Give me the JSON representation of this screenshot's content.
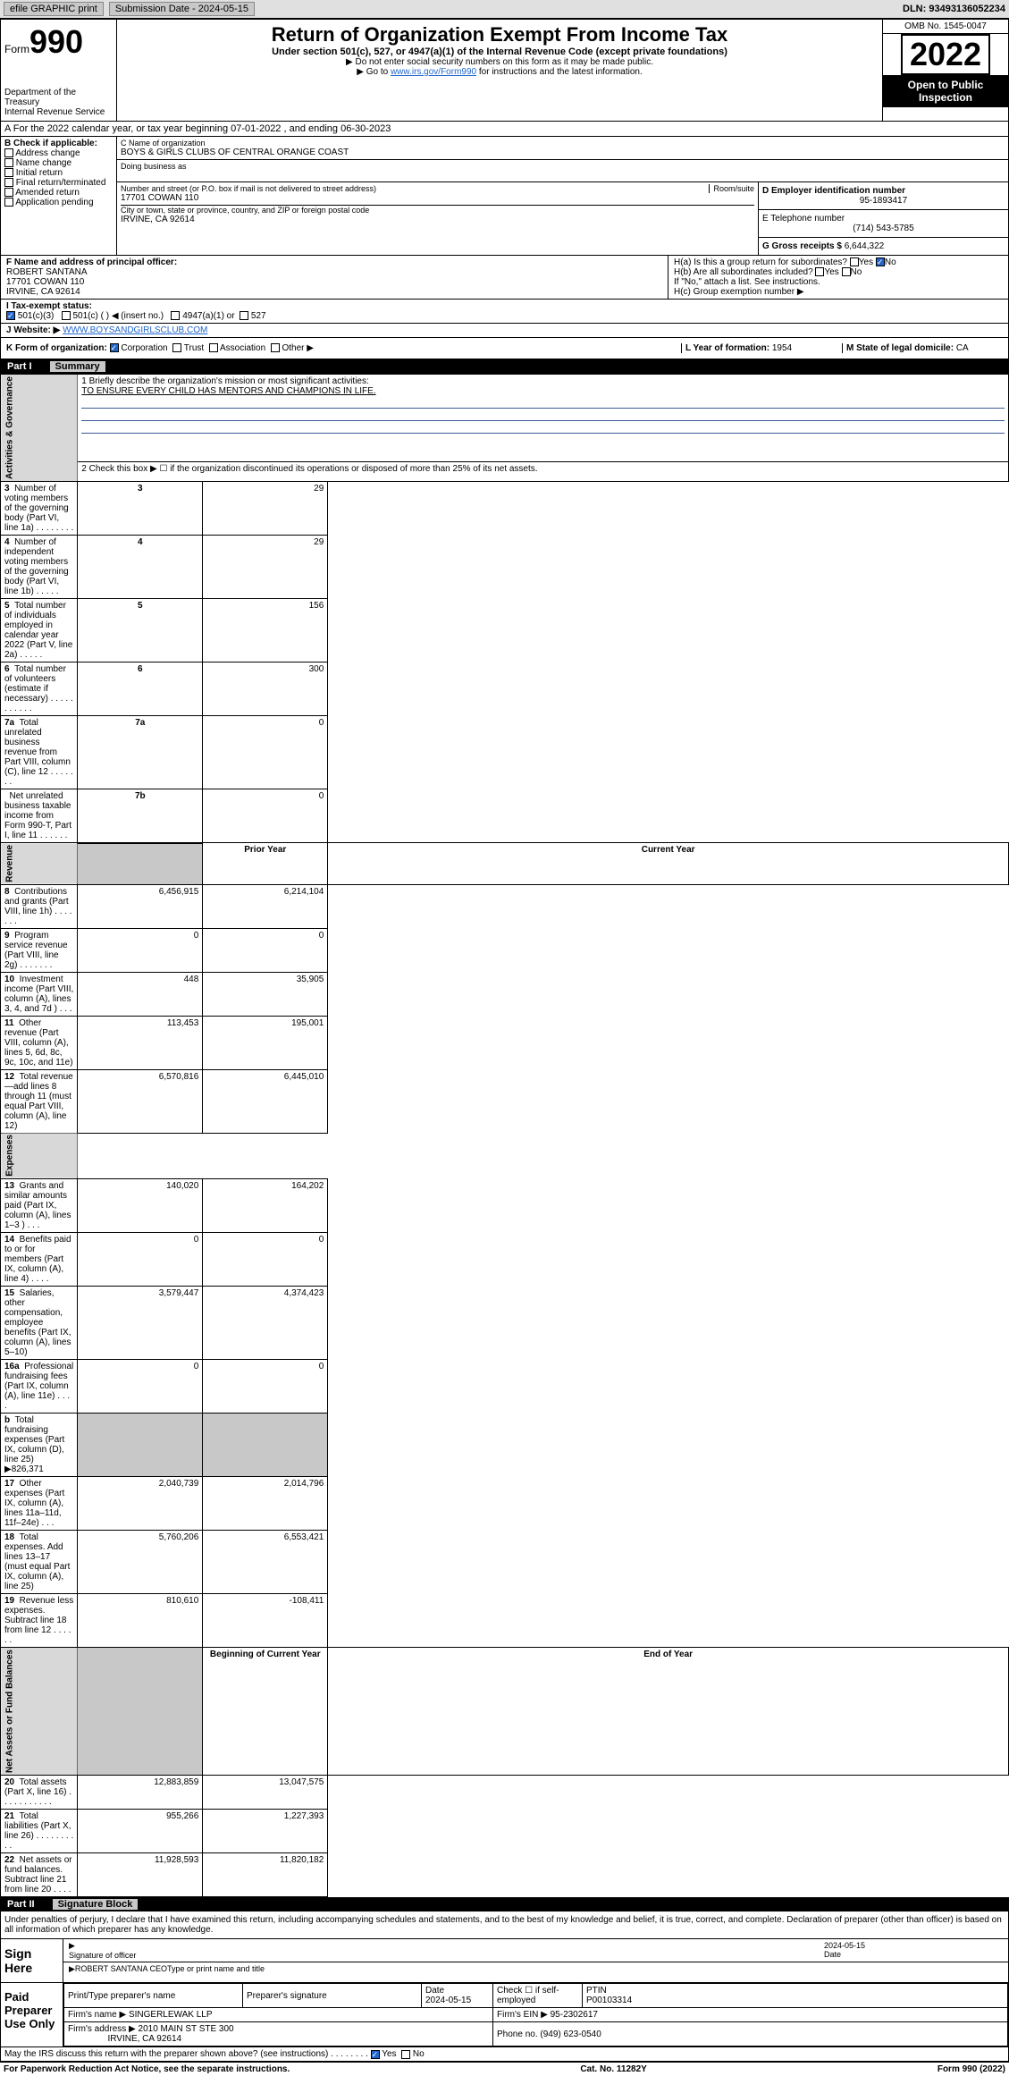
{
  "top_bar": {
    "efile": "efile GRAPHIC print",
    "submission": "Submission Date - 2024-05-15",
    "dln": "DLN: 93493136052234"
  },
  "header": {
    "form_word": "Form",
    "form_num": "990",
    "dept": "Department of the Treasury",
    "irs": "Internal Revenue Service",
    "title": "Return of Organization Exempt From Income Tax",
    "subtitle": "Under section 501(c), 527, or 4947(a)(1) of the Internal Revenue Code (except private foundations)",
    "instr1": "▶ Do not enter social security numbers on this form as it may be made public.",
    "instr2_pre": "▶ Go to ",
    "instr2_link": "www.irs.gov/Form990",
    "instr2_post": " for instructions and the latest information.",
    "omb": "OMB No. 1545-0047",
    "year": "2022",
    "inspect": "Open to Public Inspection"
  },
  "section_a": "A For the 2022 calendar year, or tax year beginning 07-01-2022   , and ending 06-30-2023",
  "section_b": {
    "label": "B Check if applicable:",
    "items": [
      "Address change",
      "Name change",
      "Initial return",
      "Final return/terminated",
      "Amended return",
      "Application pending"
    ]
  },
  "section_c": {
    "name_label": "C Name of organization",
    "name": "BOYS & GIRLS CLUBS OF CENTRAL ORANGE COAST",
    "dba_label": "Doing business as",
    "addr_label": "Number and street (or P.O. box if mail is not delivered to street address)",
    "room_label": "Room/suite",
    "addr": "17701 COWAN 110",
    "city_label": "City or town, state or province, country, and ZIP or foreign postal code",
    "city": "IRVINE, CA  92614"
  },
  "section_d": {
    "label": "D Employer identification number",
    "value": "95-1893417"
  },
  "section_e": {
    "label": "E Telephone number",
    "value": "(714) 543-5785"
  },
  "section_g": {
    "label": "G Gross receipts $",
    "value": "6,644,322"
  },
  "section_f": {
    "label": "F Name and address of principal officer:",
    "name": "ROBERT SANTANA",
    "addr": "17701 COWAN 110",
    "city": "IRVINE, CA  92614"
  },
  "section_h": {
    "a": "H(a)  Is this a group return for subordinates?",
    "a_yes": "Yes",
    "a_no": "No",
    "b": "H(b)  Are all subordinates included?",
    "b_note": "If \"No,\" attach a list. See instructions.",
    "c": "H(c)  Group exemption number ▶"
  },
  "section_i": {
    "label": "I   Tax-exempt status:",
    "opts": [
      "501(c)(3)",
      "501(c) (  ) ◀ (insert no.)",
      "4947(a)(1) or",
      "527"
    ]
  },
  "section_j": {
    "label": "J   Website: ▶",
    "value": "WWW.BOYSANDGIRLSCLUB.COM"
  },
  "section_k": {
    "label": "K Form of organization:",
    "opts": [
      "Corporation",
      "Trust",
      "Association",
      "Other ▶"
    ]
  },
  "section_l": {
    "label": "L Year of formation:",
    "value": "1954"
  },
  "section_m": {
    "label": "M State of legal domicile:",
    "value": "CA"
  },
  "part1": {
    "num": "Part I",
    "title": "Summary"
  },
  "summary": {
    "governance_label": "Activities & Governance",
    "revenue_label": "Revenue",
    "expenses_label": "Expenses",
    "netassets_label": "Net Assets or Fund Balances",
    "line1_label": "1  Briefly describe the organization's mission or most significant activities:",
    "line1_text": "TO ENSURE EVERY CHILD HAS MENTORS AND CHAMPIONS IN LIFE.",
    "line2": "2   Check this box ▶ ☐  if the organization discontinued its operations or disposed of more than 25% of its net assets.",
    "rows_gov": [
      {
        "n": "3",
        "d": "Number of voting members of the governing body (Part VI, line 1a)   .    .    .    .    .    .    .    .",
        "k": "3",
        "v": "29"
      },
      {
        "n": "4",
        "d": "Number of independent voting members of the governing body (Part VI, line 1b)  .    .    .    .    .",
        "k": "4",
        "v": "29"
      },
      {
        "n": "5",
        "d": "Total number of individuals employed in calendar year 2022 (Part V, line 2a)   .    .    .    .    .",
        "k": "5",
        "v": "156"
      },
      {
        "n": "6",
        "d": "Total number of volunteers (estimate if necessary)   .    .    .    .    .    .    .    .    .    .    .",
        "k": "6",
        "v": "300"
      },
      {
        "n": "7a",
        "d": "Total unrelated business revenue from Part VIII, column (C), line 12   .    .    .    .    .    .    .",
        "k": "7a",
        "v": "0"
      },
      {
        "n": "",
        "d": "Net unrelated business taxable income from Form 990-T, Part I, line 11   .    .    .    .    .    .",
        "k": "7b",
        "v": "0"
      }
    ],
    "hdr_prior": "Prior Year",
    "hdr_current": "Current Year",
    "rows_rev": [
      {
        "n": "8",
        "d": "Contributions and grants (Part VIII, line 1h)   .    .    .    .    .    .    .",
        "p": "6,456,915",
        "c": "6,214,104"
      },
      {
        "n": "9",
        "d": "Program service revenue (Part VIII, line 2g)   .    .    .    .    .    .    .",
        "p": "0",
        "c": "0"
      },
      {
        "n": "10",
        "d": "Investment income (Part VIII, column (A), lines 3, 4, and 7d )   .    .    .",
        "p": "448",
        "c": "35,905"
      },
      {
        "n": "11",
        "d": "Other revenue (Part VIII, column (A), lines 5, 6d, 8c, 9c, 10c, and 11e)",
        "p": "113,453",
        "c": "195,001"
      },
      {
        "n": "12",
        "d": "Total revenue—add lines 8 through 11 (must equal Part VIII, column (A), line 12)",
        "p": "6,570,816",
        "c": "6,445,010"
      }
    ],
    "rows_exp": [
      {
        "n": "13",
        "d": "Grants and similar amounts paid (Part IX, column (A), lines 1–3 )   .    .    .",
        "p": "140,020",
        "c": "164,202"
      },
      {
        "n": "14",
        "d": "Benefits paid to or for members (Part IX, column (A), line 4)   .    .    .    .",
        "p": "0",
        "c": "0"
      },
      {
        "n": "15",
        "d": "Salaries, other compensation, employee benefits (Part IX, column (A), lines 5–10)",
        "p": "3,579,447",
        "c": "4,374,423"
      },
      {
        "n": "16a",
        "d": "Professional fundraising fees (Part IX, column (A), line 11e)   .    .    .    .",
        "p": "0",
        "c": "0"
      },
      {
        "n": "b",
        "d": "Total fundraising expenses (Part IX, column (D), line 25) ▶826,371",
        "p": "",
        "c": "",
        "shaded": true
      },
      {
        "n": "17",
        "d": "Other expenses (Part IX, column (A), lines 11a–11d, 11f–24e)  .    .    .",
        "p": "2,040,739",
        "c": "2,014,796"
      },
      {
        "n": "18",
        "d": "Total expenses. Add lines 13–17 (must equal Part IX, column (A), line 25)",
        "p": "5,760,206",
        "c": "6,553,421"
      },
      {
        "n": "19",
        "d": "Revenue less expenses. Subtract line 18 from line 12   .    .    .    .    .    .",
        "p": "810,610",
        "c": "-108,411"
      }
    ],
    "hdr_begin": "Beginning of Current Year",
    "hdr_end": "End of Year",
    "rows_net": [
      {
        "n": "20",
        "d": "Total assets (Part X, line 16)   .    .    .    .    .    .    .    .    .    .    .",
        "p": "12,883,859",
        "c": "13,047,575"
      },
      {
        "n": "21",
        "d": "Total liabilities (Part X, line 26)   .    .    .    .    .    .    .    .    .    .",
        "p": "955,266",
        "c": "1,227,393"
      },
      {
        "n": "22",
        "d": "Net assets or fund balances. Subtract line 21 from line 20   .    .    .    .",
        "p": "11,928,593",
        "c": "11,820,182"
      }
    ]
  },
  "part2": {
    "num": "Part II",
    "title": "Signature Block"
  },
  "sig": {
    "intro": "Under penalties of perjury, I declare that I have examined this return, including accompanying schedules and statements, and to the best of my knowledge and belief, it is true, correct, and complete. Declaration of preparer (other than officer) is based on all information of which preparer has any knowledge.",
    "sign_here": "Sign Here",
    "sig_officer": "Signature of officer",
    "date": "2024-05-15",
    "date_label": "Date",
    "officer_name": "ROBERT SANTANA CEO",
    "officer_label": "Type or print name and title",
    "paid": "Paid Preparer Use Only",
    "prep_name_label": "Print/Type preparer's name",
    "prep_sig_label": "Preparer's signature",
    "prep_date_label": "Date",
    "prep_date": "2024-05-15",
    "prep_check": "Check ☐ if self-employed",
    "ptin_label": "PTIN",
    "ptin": "P00103314",
    "firm_name_label": "Firm's name    ▶",
    "firm_name": "SINGERLEWAK LLP",
    "firm_ein_label": "Firm's EIN ▶",
    "firm_ein": "95-2302617",
    "firm_addr_label": "Firm's address ▶",
    "firm_addr": "2010 MAIN ST STE 300",
    "firm_city": "IRVINE, CA  92614",
    "phone_label": "Phone no.",
    "phone": "(949) 623-0540",
    "discuss": "May the IRS discuss this return with the preparer shown above? (see instructions)   .    .    .    .    .    .    .    .",
    "yes": "Yes",
    "no": "No"
  },
  "footer": {
    "left": "For Paperwork Reduction Act Notice, see the separate instructions.",
    "mid": "Cat. No. 11282Y",
    "right": "Form 990 (2022)"
  }
}
